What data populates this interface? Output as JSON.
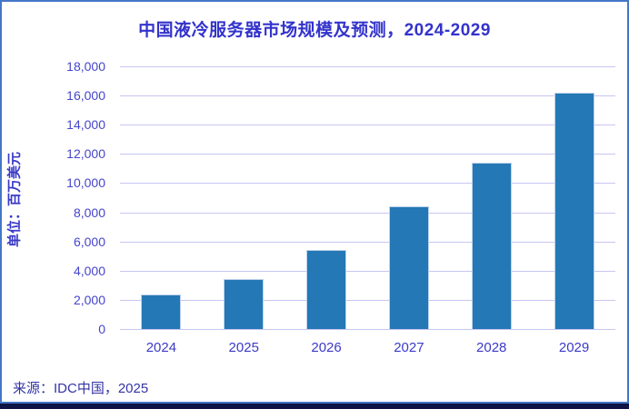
{
  "window": {
    "frame_border_color": "#4477c8",
    "footer_strip_color": "#0e1444",
    "background_color": "#ffffff"
  },
  "source_note": "来源：IDC中国，2025",
  "chart_data": {
    "type": "bar",
    "title": "中国液冷服务器市场规模及预测，2024-2029",
    "ylabel": "单位：百万美元",
    "xlabel": "",
    "categories": [
      "2024",
      "2025",
      "2026",
      "2027",
      "2028",
      "2029"
    ],
    "values": [
      2370,
      3400,
      5400,
      8400,
      11400,
      16200
    ],
    "ylim": [
      0,
      18000
    ],
    "ytick_step": 2000,
    "ytick_labels": [
      "0",
      "2,000",
      "4,000",
      "6,000",
      "8,000",
      "10,000",
      "12,000",
      "14,000",
      "16,000",
      "18,000"
    ],
    "grid": "horizontal",
    "legend": "none",
    "bar_color": "#2478b5",
    "bar_edge_color": "#bdd2ec",
    "gridline_color": "#c6c6f2",
    "title_color": "#3333cc",
    "tick_label_color": "#4545cc"
  }
}
